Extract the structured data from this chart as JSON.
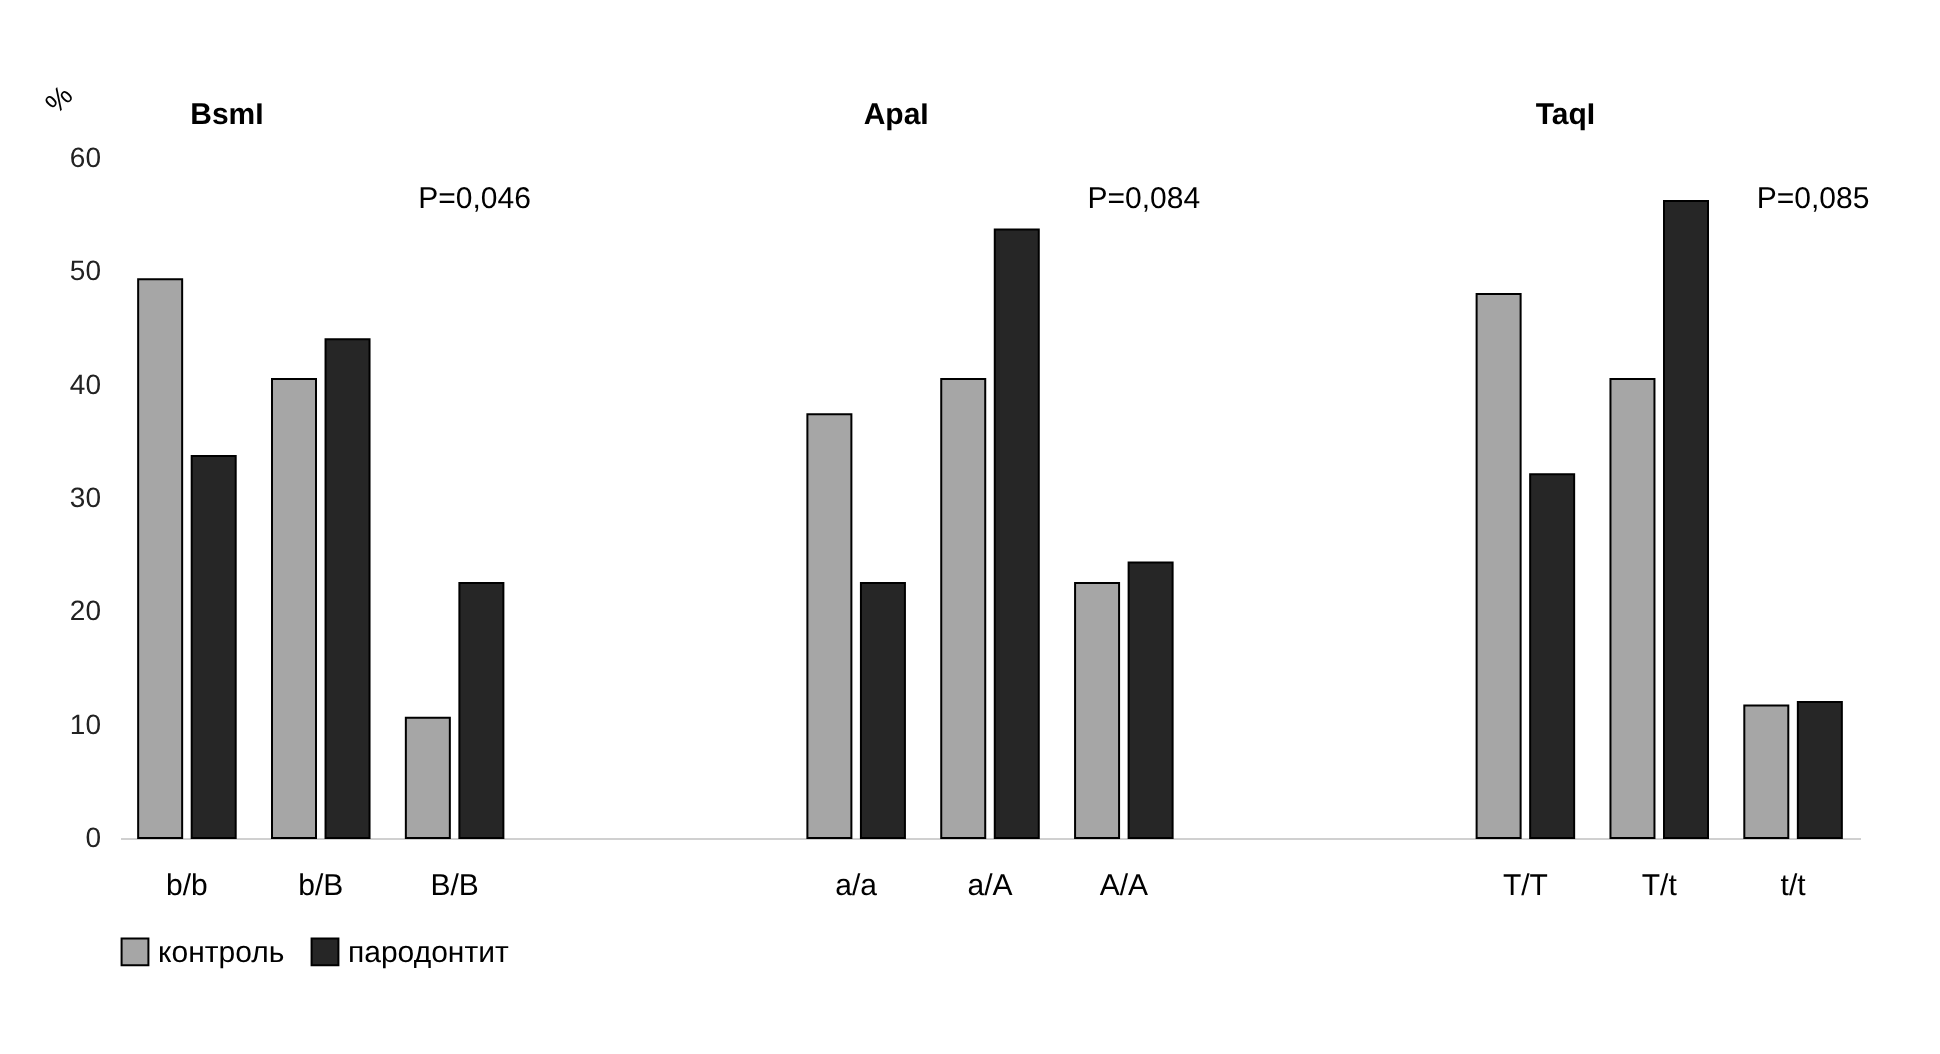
{
  "chart_data": {
    "type": "bar",
    "ylabel": "%",
    "categories": [
      "b/b",
      "b/B",
      "B/B",
      null,
      null,
      "a/a",
      "a/A",
      "A/A",
      null,
      null,
      "T/T",
      "T/t",
      "t/t"
    ],
    "series": [
      {
        "name": "контроль",
        "color": "#a6a6a6",
        "values": [
          49.3,
          40.5,
          10.6,
          null,
          null,
          37.4,
          40.5,
          22.5,
          null,
          null,
          48.0,
          40.5,
          11.7
        ]
      },
      {
        "name": "пародонтит",
        "color": "#262626",
        "values": [
          33.7,
          44.0,
          22.5,
          null,
          null,
          22.5,
          53.7,
          24.3,
          null,
          null,
          32.1,
          56.2,
          12.0
        ]
      }
    ],
    "ylim": [
      0,
      60
    ],
    "yticks": [
      0,
      10,
      20,
      30,
      40,
      50,
      60
    ],
    "grid": false,
    "legend": "bottom",
    "annotations": [
      "BsmI",
      "ApaI",
      "TaqI",
      "P=0,046",
      "P=0,084",
      "P=0,085"
    ]
  }
}
